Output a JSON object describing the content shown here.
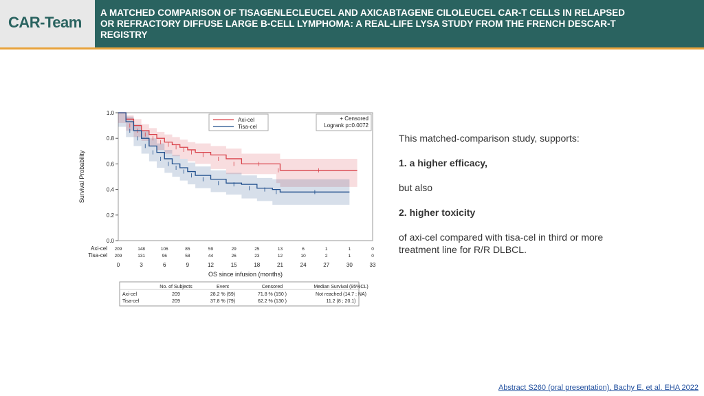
{
  "header": {
    "logo": "CAR-Team",
    "title": "A MATCHED COMPARISON OF TISAGENLECLEUCEL AND AXICABTAGENE CILOLEUCEL CAR-T CELLS IN RELAPSED\nOR REFRACTORY DIFFUSE LARGE B-CELL LYMPHOMA: A REAL-LIFE LYSA STUDY FROM THE FRENCH DESCAR-T\nREGISTRY"
  },
  "colors": {
    "header_bg": "#2a6360",
    "accent": "#e8a23a",
    "axi": "#d9434b",
    "tisa": "#1f4e8c"
  },
  "body": {
    "line1": "This matched-comparison study, supports:",
    "line2": "1. a higher efficacy,",
    "line3": "but also",
    "line4": "2. higher toxicity",
    "line5": "of axi-cel compared with tisa-cel in third or more treatment line for R/R DLBCL."
  },
  "citation": "Abstract S260 (oral presentation), Bachy E. et al. EHA 2022",
  "chart_data": {
    "type": "line",
    "xlabel": "OS since infusion (months)",
    "ylabel": "Survival Probability",
    "xlim": [
      0,
      33
    ],
    "ylim": [
      0,
      1
    ],
    "xticks": [
      "0",
      "3",
      "6",
      "9",
      "12",
      "15",
      "18",
      "21",
      "24",
      "27",
      "30",
      "33"
    ],
    "yticks": [
      "0.0",
      "0.2",
      "0.4",
      "0.6",
      "0.8",
      "1.0"
    ],
    "legend": {
      "position": "top-center",
      "items": [
        "Axi-cel",
        "Tisa-cel"
      ],
      "censored_label": "+ Censored",
      "logrank": "Logrank p=0.0072"
    },
    "series": [
      {
        "name": "Axi-cel",
        "x": [
          0,
          1,
          2,
          3,
          4,
          5,
          6,
          7,
          8,
          9,
          10,
          12,
          14,
          16,
          20.5,
          21,
          31
        ],
        "y": [
          1.0,
          0.95,
          0.9,
          0.86,
          0.83,
          0.8,
          0.77,
          0.75,
          0.73,
          0.71,
          0.69,
          0.67,
          0.64,
          0.6,
          0.6,
          0.55,
          0.55
        ],
        "ci_low": [
          1.0,
          0.92,
          0.86,
          0.81,
          0.78,
          0.74,
          0.71,
          0.68,
          0.66,
          0.64,
          0.62,
          0.6,
          0.56,
          0.52,
          0.52,
          0.45,
          0.42
        ],
        "ci_high": [
          1.0,
          0.98,
          0.95,
          0.91,
          0.88,
          0.85,
          0.83,
          0.81,
          0.79,
          0.77,
          0.76,
          0.74,
          0.72,
          0.68,
          0.68,
          0.64,
          0.64
        ]
      },
      {
        "name": "Tisa-cel",
        "x": [
          0,
          1,
          2,
          3,
          4,
          5,
          6,
          7,
          8,
          9,
          10,
          12,
          14,
          16,
          18,
          20,
          21,
          30
        ],
        "y": [
          1.0,
          0.93,
          0.86,
          0.8,
          0.74,
          0.69,
          0.64,
          0.6,
          0.57,
          0.54,
          0.51,
          0.48,
          0.45,
          0.44,
          0.41,
          0.4,
          0.38,
          0.38
        ],
        "ci_low": [
          1.0,
          0.89,
          0.81,
          0.74,
          0.68,
          0.62,
          0.57,
          0.53,
          0.5,
          0.47,
          0.44,
          0.41,
          0.38,
          0.36,
          0.33,
          0.31,
          0.28,
          0.28
        ],
        "ci_high": [
          1.0,
          0.97,
          0.91,
          0.86,
          0.8,
          0.76,
          0.71,
          0.67,
          0.64,
          0.61,
          0.58,
          0.55,
          0.53,
          0.51,
          0.49,
          0.48,
          0.48,
          0.48
        ]
      }
    ],
    "risk_table": {
      "rows": [
        {
          "label": "Axi-cel",
          "values": [
            "209",
            "148",
            "106",
            "85",
            "59",
            "29",
            "25",
            "13",
            "6",
            "1",
            "1",
            "0"
          ]
        },
        {
          "label": "Tisa-cel",
          "values": [
            "209",
            "131",
            "96",
            "58",
            "44",
            "26",
            "23",
            "12",
            "10",
            "2",
            "1",
            "0"
          ]
        }
      ]
    },
    "summary_table": {
      "headers": [
        "",
        "No. of Subjects",
        "Event",
        "Censored",
        "Median Survival (95%CL)"
      ],
      "rows": [
        [
          "Axi-cel",
          "209",
          "28.2 % (59)",
          "71.8 % (150 )",
          "Not reached (14.7 ; NA)"
        ],
        [
          "Tisa-cel",
          "209",
          "37.8 % (79)",
          "62.2 % (130 )",
          "11.2 (8 ; 20.1)"
        ]
      ]
    }
  }
}
